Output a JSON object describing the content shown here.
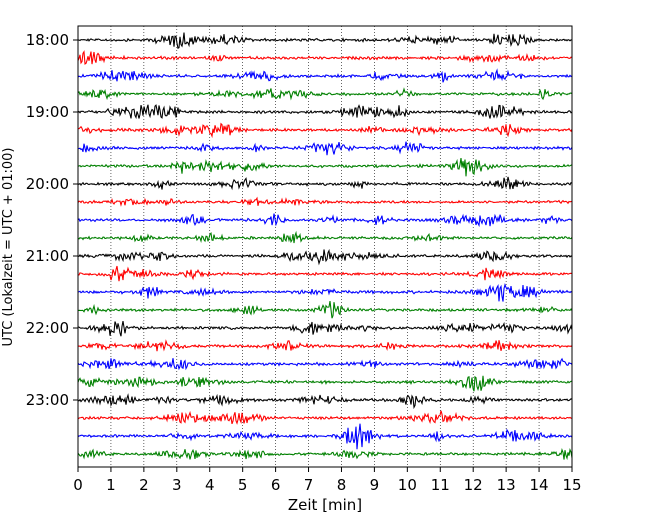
{
  "chart_data": {
    "type": "line",
    "title": "",
    "xlabel": "Zeit  [min]",
    "ylabel": "UTC (Lokalzeit = UTC + 01:00)",
    "xlim": [
      0,
      15
    ],
    "x_ticks": [
      "0",
      "1",
      "2",
      "3",
      "4",
      "5",
      "6",
      "7",
      "8",
      "9",
      "10",
      "11",
      "12",
      "13",
      "14",
      "15"
    ],
    "y_ticks": [
      "18:00",
      "19:00",
      "20:00",
      "21:00",
      "22:00",
      "23:00"
    ],
    "vertical_grid": "dotted",
    "trace_colors": [
      "#000000",
      "#ff0000",
      "#0000ff",
      "#008000"
    ],
    "traces": [
      {
        "start": "18:00",
        "color": "#000000"
      },
      {
        "start": "18:15",
        "color": "#ff0000"
      },
      {
        "start": "18:30",
        "color": "#0000ff"
      },
      {
        "start": "18:45",
        "color": "#008000"
      },
      {
        "start": "19:00",
        "color": "#000000"
      },
      {
        "start": "19:15",
        "color": "#ff0000"
      },
      {
        "start": "19:30",
        "color": "#0000ff"
      },
      {
        "start": "19:45",
        "color": "#008000"
      },
      {
        "start": "20:00",
        "color": "#000000"
      },
      {
        "start": "20:15",
        "color": "#ff0000"
      },
      {
        "start": "20:30",
        "color": "#0000ff"
      },
      {
        "start": "20:45",
        "color": "#008000"
      },
      {
        "start": "21:00",
        "color": "#000000"
      },
      {
        "start": "21:15",
        "color": "#ff0000"
      },
      {
        "start": "21:30",
        "color": "#0000ff"
      },
      {
        "start": "21:45",
        "color": "#008000"
      },
      {
        "start": "22:00",
        "color": "#000000"
      },
      {
        "start": "22:15",
        "color": "#ff0000"
      },
      {
        "start": "22:30",
        "color": "#0000ff"
      },
      {
        "start": "22:45",
        "color": "#008000"
      },
      {
        "start": "23:00",
        "color": "#000000"
      },
      {
        "start": "23:15",
        "color": "#ff0000"
      },
      {
        "start": "23:30",
        "color": "#0000ff"
      },
      {
        "start": "23:45",
        "color": "#008000"
      }
    ]
  }
}
